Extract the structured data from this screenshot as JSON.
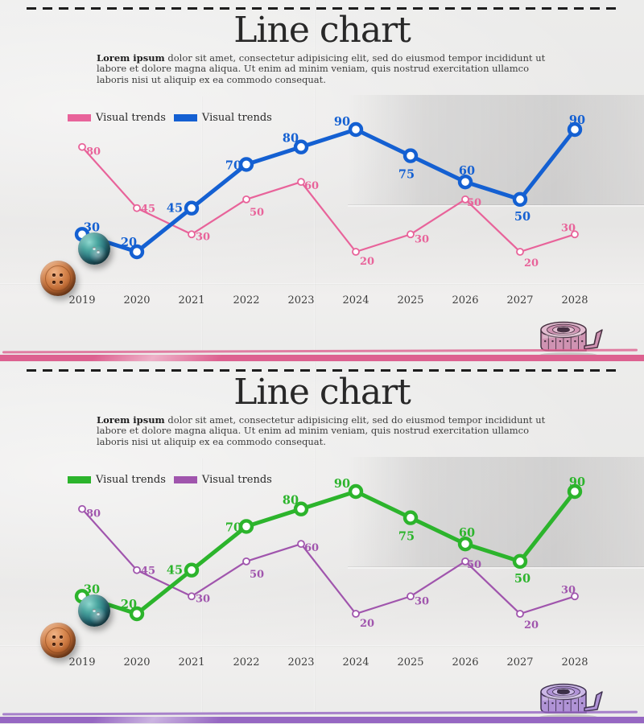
{
  "panels": [
    {
      "title": "Line chart",
      "intro_bold": "Lorem ipsum",
      "intro_rest": " dolor sit amet, consectetur adipisicing elit, sed do eiusmod tempor incididunt ut labore et dolore magna aliqua. Ut enim ad minim veniam, quis nostrud exercitation ullamco laboris nisi ut aliquip ex ea commodo consequat.",
      "legend": [
        {
          "label": "Visual trends",
          "color": "#e8639a"
        },
        {
          "label": "Visual trends",
          "color": "#1460d2"
        }
      ],
      "divider_color": "#dd6190",
      "tape_color": "#cf93b2",
      "tape_color_light": "#e2bcd0",
      "chart_data": {
        "type": "line",
        "categories": [
          "2019",
          "2020",
          "2021",
          "2022",
          "2023",
          "2024",
          "2025",
          "2026",
          "2027",
          "2028"
        ],
        "series": [
          {
            "name": "Visual trends",
            "color": "#e8639a",
            "style": "thin",
            "values": [
              80,
              45,
              30,
              50,
              60,
              20,
              30,
              50,
              20,
              30
            ]
          },
          {
            "name": "Visual trends",
            "color": "#1460d2",
            "style": "thick",
            "values": [
              30,
              20,
              45,
              70,
              80,
              90,
              75,
              60,
              50,
              90
            ]
          }
        ],
        "ylim": [
          0,
          100
        ],
        "xlabel": "",
        "ylabel": "",
        "grid": false,
        "legend_position": "top-left",
        "value_labels": true
      }
    },
    {
      "title": "Line chart",
      "intro_bold": "Lorem ipsum",
      "intro_rest": " dolor sit amet, consectetur adipisicing elit, sed do eiusmod tempor incididunt ut labore et dolore magna aliqua. Ut enim ad minim veniam, quis nostrud exercitation ullamco laboris nisi ut aliquip ex ea commodo consequat.",
      "legend": [
        {
          "label": "Visual trends",
          "color": "#2cb42c"
        },
        {
          "label": "Visual trends",
          "color": "#a055ad"
        }
      ],
      "divider_color": "#9667c2",
      "tape_color": "#b093d6",
      "tape_color_light": "#cbb7e6",
      "chart_data": {
        "type": "line",
        "categories": [
          "2019",
          "2020",
          "2021",
          "2022",
          "2023",
          "2024",
          "2025",
          "2026",
          "2027",
          "2028"
        ],
        "series": [
          {
            "name": "Visual trends",
            "color": "#a055ad",
            "style": "thin",
            "values": [
              80,
              45,
              30,
              50,
              60,
              20,
              30,
              50,
              20,
              30
            ]
          },
          {
            "name": "Visual trends",
            "color": "#2cb42c",
            "style": "thick",
            "values": [
              30,
              20,
              45,
              70,
              80,
              90,
              75,
              60,
              50,
              90
            ]
          }
        ],
        "ylim": [
          0,
          100
        ],
        "xlabel": "",
        "ylabel": "",
        "grid": false,
        "legend_position": "top-left",
        "value_labels": true
      }
    }
  ]
}
